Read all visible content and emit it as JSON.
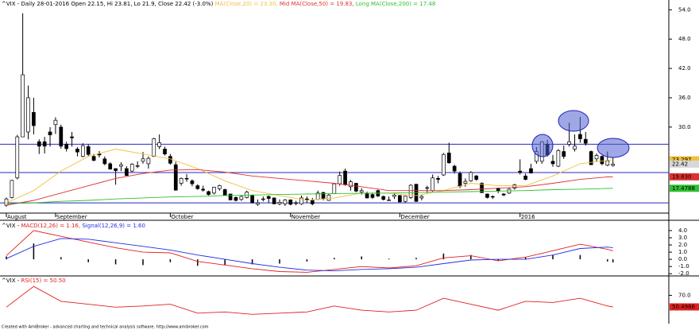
{
  "chart_data": [
    {
      "type": "candlestick",
      "title": "^VIX - Daily 28-01-2016 Open 22.15, Hi 23.81, Lo 21.9, Close 22.42 (-3.0%)",
      "ylim": [
        12.4,
        56
      ],
      "yticks": [
        {
          "value": 54,
          "label": "54.0"
        },
        {
          "value": 48,
          "label": "48.0"
        },
        {
          "value": 42,
          "label": "42.0"
        },
        {
          "value": 36,
          "label": "36.0"
        },
        {
          "value": 30,
          "label": "30.0"
        }
      ],
      "x_labels": [
        {
          "index": 0,
          "label": "August"
        },
        {
          "index": 9,
          "label": "September"
        },
        {
          "index": 30,
          "label": "October"
        },
        {
          "index": 52,
          "label": "November"
        },
        {
          "index": 72,
          "label": "December"
        },
        {
          "index": 94,
          "label": "2016"
        }
      ],
      "hlines": [
        26.5,
        20.7,
        14.5
      ],
      "hline_color": "#2828c0",
      "value_boxes": true,
      "close_box_color": "#d8d8d8",
      "candles": [
        [
          14.0,
          15.6,
          13.7,
          15.3
        ],
        [
          15.6,
          19.2,
          15.4,
          19.1
        ],
        [
          19.6,
          28.4,
          19.3,
          28.0
        ],
        [
          28.0,
          53.3,
          28.0,
          40.7
        ],
        [
          29.0,
          38.5,
          27.5,
          36.0
        ],
        [
          33.0,
          36.0,
          28.5,
          30.3
        ],
        [
          27.0,
          27.5,
          24.5,
          26.1
        ],
        [
          27.0,
          28.0,
          24.6,
          26.1
        ],
        [
          29.0,
          30.0,
          26.0,
          28.4
        ],
        [
          30.5,
          32.0,
          28.6,
          31.4
        ],
        [
          30.0,
          30.5,
          25.6,
          26.1
        ],
        [
          26.5,
          27.0,
          25.0,
          25.6
        ],
        [
          28.0,
          29.0,
          26.0,
          27.8
        ],
        [
          25.5,
          25.9,
          24.0,
          24.9
        ],
        [
          24.0,
          26.7,
          23.8,
          26.2
        ],
        [
          26.0,
          26.5,
          24.0,
          24.4
        ],
        [
          24.0,
          24.5,
          23.0,
          23.2
        ],
        [
          24.5,
          25.1,
          23.8,
          24.3
        ],
        [
          23.5,
          24.0,
          22.2,
          22.5
        ],
        [
          22.5,
          22.8,
          21.3,
          21.4
        ],
        [
          21.5,
          21.6,
          18.2,
          21.1
        ],
        [
          22.0,
          22.8,
          21.0,
          22.3
        ],
        [
          21.5,
          22.0,
          20.0,
          20.1
        ],
        [
          21.0,
          22.6,
          20.8,
          22.4
        ],
        [
          22.0,
          23.0,
          21.6,
          22.1
        ],
        [
          23.0,
          24.9,
          22.5,
          23.5
        ],
        [
          22.5,
          24.0,
          21.5,
          23.6
        ],
        [
          24.0,
          27.8,
          23.9,
          27.6
        ],
        [
          26.0,
          28.5,
          25.5,
          26.8
        ],
        [
          25.5,
          26.0,
          24.2,
          24.5
        ],
        [
          24.0,
          24.5,
          22.3,
          22.6
        ],
        [
          22.3,
          22.9,
          17.0,
          17.1
        ],
        [
          18.5,
          19.7,
          18.0,
          19.5
        ],
        [
          19.5,
          20.4,
          18.8,
          19.4
        ],
        [
          19.0,
          19.3,
          17.9,
          18.4
        ],
        [
          18.0,
          18.3,
          17.2,
          17.4
        ],
        [
          17.3,
          18.0,
          16.8,
          17.1
        ],
        [
          16.8,
          17.0,
          16.0,
          16.2
        ],
        [
          16.5,
          17.8,
          16.2,
          17.7
        ],
        [
          17.4,
          18.2,
          17.0,
          18.0
        ],
        [
          17.2,
          17.4,
          16.0,
          16.1
        ],
        [
          16.3,
          16.4,
          15.0,
          15.1
        ],
        [
          15.6,
          15.8,
          14.8,
          15.0
        ],
        [
          15.2,
          16.0,
          14.9,
          15.8
        ],
        [
          15.6,
          17.0,
          15.4,
          16.7
        ],
        [
          16.0,
          16.2,
          14.4,
          14.5
        ],
        [
          14.2,
          15.2,
          13.9,
          14.5
        ],
        [
          15.3,
          15.8,
          14.8,
          15.3
        ],
        [
          15.8,
          16.0,
          14.5,
          15.4
        ],
        [
          15.5,
          15.6,
          14.2,
          14.3
        ],
        [
          14.3,
          15.2,
          14.0,
          14.6
        ],
        [
          14.3,
          15.3,
          13.9,
          15.1
        ],
        [
          15.1,
          15.2,
          14.0,
          14.2
        ],
        [
          14.5,
          14.9,
          14.0,
          14.5
        ],
        [
          14.3,
          16.0,
          14.1,
          15.5
        ],
        [
          15.3,
          15.8,
          14.5,
          15.1
        ],
        [
          15.0,
          15.5,
          14.0,
          14.3
        ],
        [
          15.2,
          17.0,
          15.1,
          16.5
        ],
        [
          16.6,
          16.8,
          15.0,
          15.3
        ],
        [
          15.0,
          16.4,
          14.9,
          16.1
        ],
        [
          16.4,
          18.5,
          16.3,
          18.4
        ],
        [
          18.4,
          20.9,
          18.0,
          20.1
        ],
        [
          21.0,
          21.5,
          18.0,
          18.2
        ],
        [
          17.8,
          19.2,
          17.0,
          18.8
        ],
        [
          18.5,
          18.6,
          16.7,
          16.9
        ],
        [
          16.7,
          17.5,
          16.2,
          17.0
        ],
        [
          16.5,
          16.8,
          15.4,
          15.5
        ],
        [
          16.2,
          16.6,
          15.3,
          15.6
        ],
        [
          17.0,
          17.2,
          15.7,
          15.9
        ],
        [
          15.8,
          16.0,
          15.0,
          15.2
        ],
        [
          15.1,
          15.8,
          14.9,
          15.1
        ],
        [
          15.8,
          16.6,
          15.3,
          16.1
        ],
        [
          16.0,
          16.1,
          14.6,
          14.7
        ],
        [
          14.8,
          16.0,
          14.5,
          15.9
        ],
        [
          15.6,
          18.3,
          15.3,
          18.1
        ],
        [
          18.3,
          18.4,
          14.7,
          14.8
        ],
        [
          15.5,
          16.2,
          15.0,
          15.8
        ],
        [
          17.5,
          18.0,
          16.5,
          17.6
        ],
        [
          17.0,
          20.3,
          16.8,
          19.6
        ],
        [
          19.5,
          20.0,
          18.5,
          19.3
        ],
        [
          20.2,
          24.7,
          20.0,
          24.4
        ],
        [
          24.7,
          26.8,
          22.5,
          22.7
        ],
        [
          22.0,
          22.3,
          20.5,
          21.0
        ],
        [
          20.5,
          20.9,
          17.5,
          17.9
        ],
        [
          18.5,
          19.5,
          17.8,
          18.9
        ],
        [
          19.0,
          21.0,
          18.8,
          20.7
        ],
        [
          20.0,
          20.2,
          19.0,
          19.3
        ],
        [
          18.5,
          18.7,
          16.5,
          16.6
        ],
        [
          16.3,
          16.4,
          15.4,
          15.6
        ],
        [
          15.8,
          16.0,
          15.3,
          15.7
        ],
        [
          17.5,
          17.6,
          16.5,
          16.9
        ],
        [
          16.3,
          16.5,
          15.9,
          16.1
        ],
        [
          16.5,
          17.5,
          16.3,
          17.3
        ],
        [
          17.5,
          18.4,
          17.2,
          18.2
        ],
        [
          21.0,
          23.4,
          20.3,
          20.7
        ],
        [
          20.0,
          20.5,
          19.1,
          19.3
        ],
        [
          21.5,
          22.5,
          20.5,
          20.6
        ],
        [
          23.0,
          25.9,
          22.5,
          25.0
        ],
        [
          23.0,
          27.1,
          22.5,
          27.0
        ],
        [
          26.5,
          27.4,
          24.0,
          24.3
        ],
        [
          23.0,
          24.3,
          21.9,
          22.5
        ],
        [
          22.0,
          25.5,
          21.8,
          25.2
        ],
        [
          25.0,
          26.2,
          23.5,
          24.0
        ],
        [
          26.5,
          30.9,
          26.0,
          27.0
        ],
        [
          25.5,
          28.5,
          25.0,
          26.1
        ],
        [
          28.5,
          32.1,
          26.8,
          27.6
        ],
        [
          27.5,
          29.0,
          26.2,
          26.7
        ],
        [
          25.0,
          25.2,
          22.3,
          22.3
        ],
        [
          23.5,
          24.6,
          23.0,
          24.2
        ],
        [
          24.0,
          24.2,
          22.2,
          22.5
        ],
        [
          22.2,
          25.0,
          22.0,
          23.1
        ],
        [
          22.15,
          23.81,
          21.9,
          22.42
        ]
      ],
      "x": [
        0,
        5,
        10,
        15,
        20,
        25,
        30,
        35,
        40,
        45,
        50,
        55,
        60,
        65,
        70,
        75,
        80,
        85,
        90,
        95,
        100,
        105,
        110,
        111
      ],
      "series": [
        {
          "name": "MA(Close,20) = 23.30,",
          "color": "#f0c040",
          "values": [
            14.5,
            17,
            21,
            24,
            25.5,
            24.5,
            23.5,
            21.5,
            19,
            17,
            16,
            15,
            15.5,
            16.5,
            16.5,
            16,
            17,
            18.5,
            18,
            18,
            20,
            22.5,
            23.2,
            23.297
          ]
        },
        {
          "name": "Mid MA(Close,50) = 19.83,",
          "color": "#e03030",
          "values": [
            14,
            15,
            16.5,
            18,
            19.5,
            20.5,
            21.2,
            21.3,
            20.8,
            20,
            19.5,
            19,
            18.5,
            17.8,
            17,
            17,
            17,
            17.2,
            17.5,
            17.8,
            18.5,
            19.3,
            19.8,
            19.83
          ],
          "value_labels": [
            null,
            null,
            null,
            null,
            null,
            null,
            null,
            null,
            null,
            null,
            null,
            null,
            null,
            null,
            null,
            null,
            null,
            null,
            null,
            null,
            null,
            null,
            null,
            "19.830"
          ]
        },
        {
          "name": "Long MA(Close,200) = 17.48",
          "color": "#30c030",
          "values": [
            14.3,
            14.5,
            14.8,
            15.0,
            15.3,
            15.5,
            15.7,
            15.8,
            16.0,
            16.1,
            16.2,
            16.3,
            16.4,
            16.45,
            16.5,
            16.6,
            16.7,
            16.8,
            16.9,
            17.0,
            17.2,
            17.3,
            17.45,
            17.4788
          ]
        }
      ]
    },
    {
      "type": "line",
      "title": "^VIX -",
      "ylim": [
        -2.2,
        5.1
      ],
      "yticks": [
        {
          "value": 4,
          "label": "4.0"
        },
        {
          "value": 3,
          "label": "3.0"
        },
        {
          "value": 2,
          "label": "2.0"
        },
        {
          "value": 1,
          "label": "1.0"
        },
        {
          "value": 0,
          "label": "0.0"
        },
        {
          "value": -1,
          "label": "-1.0"
        },
        {
          "value": -2,
          "label": "-2.0"
        }
      ],
      "value_boxes": false,
      "x": [
        0,
        5,
        10,
        15,
        20,
        25,
        30,
        35,
        40,
        45,
        50,
        55,
        60,
        65,
        70,
        75,
        80,
        85,
        90,
        95,
        100,
        105,
        110,
        111
      ],
      "series": [
        {
          "type": "bar",
          "color": "#000000",
          "values": [
            0.4,
            2.2,
            0.3,
            -0.4,
            -0.7,
            -0.8,
            -0.4,
            -0.9,
            -0.8,
            -0.7,
            -0.6,
            -0.3,
            0.2,
            0.4,
            0.1,
            0.2,
            0.8,
            0.6,
            -0.2,
            0.3,
            0.6,
            0.6,
            -0.3,
            -0.44
          ]
        },
        {
          "name": "MACD(12,26) = 1.16,",
          "color": "#e02020",
          "values": [
            0.5,
            4.0,
            3.2,
            2.4,
            1.6,
            1.0,
            0.9,
            -0.3,
            -0.8,
            -1.3,
            -1.7,
            -1.8,
            -1.4,
            -1.0,
            -1.2,
            -0.9,
            0.2,
            0.5,
            -0.2,
            0.3,
            1.2,
            2.1,
            1.4,
            1.16
          ]
        },
        {
          "name": "Signal(12,26,9) = 1.60",
          "color": "#2030e0",
          "values": [
            0.1,
            1.8,
            2.9,
            2.8,
            2.3,
            1.8,
            1.3,
            0.6,
            0.0,
            -0.6,
            -1.1,
            -1.5,
            -1.6,
            -1.4,
            -1.3,
            -1.1,
            -0.6,
            -0.1,
            0.0,
            0.0,
            0.6,
            1.5,
            1.7,
            1.6
          ]
        }
      ]
    },
    {
      "type": "line",
      "title": "^VIX -",
      "ylim": [
        25,
        100
      ],
      "yticks": [
        {
          "value": 70,
          "label": "70.0"
        }
      ],
      "value_boxes": true,
      "x": [
        0,
        5,
        10,
        15,
        20,
        25,
        30,
        35,
        40,
        45,
        50,
        55,
        60,
        65,
        70,
        75,
        80,
        85,
        90,
        95,
        100,
        105,
        110,
        111
      ],
      "series": [
        {
          "name": "RSI(15) = 50.50",
          "color": "#e02020",
          "values": [
            50,
            85,
            60,
            55,
            50,
            52,
            55,
            40,
            42,
            38,
            40,
            42,
            52,
            45,
            42,
            45,
            65,
            55,
            45,
            60,
            58,
            65,
            52,
            50.4986
          ]
        }
      ]
    }
  ],
  "footer": "Created with AmiBroker - advanced charting and technical analysis software. http://www.amibroker.com"
}
